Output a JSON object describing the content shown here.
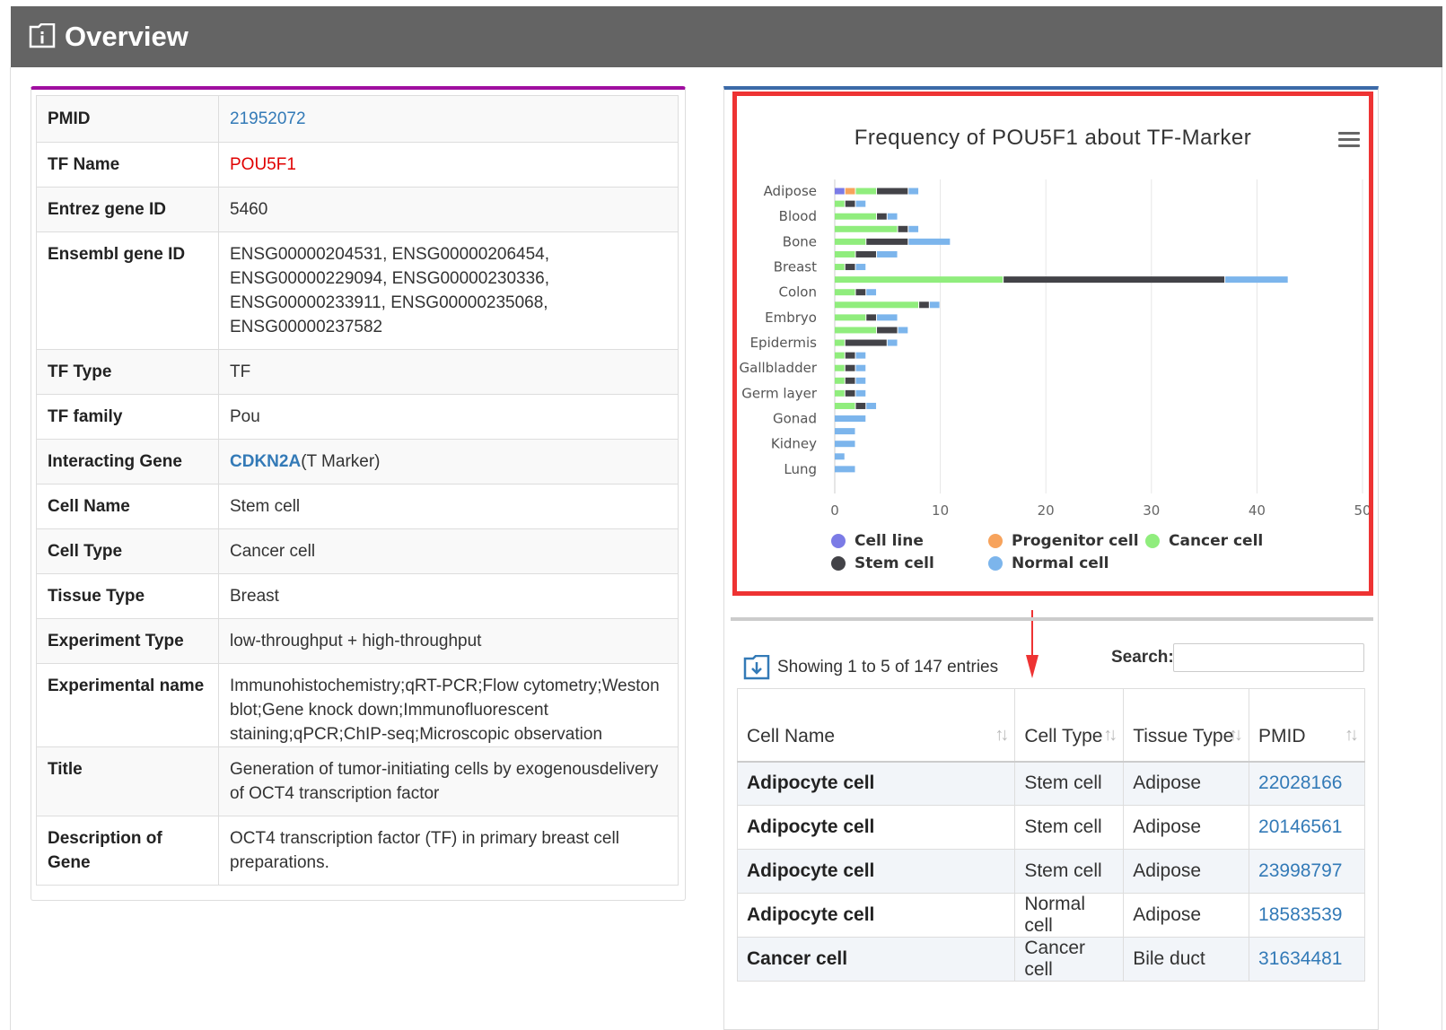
{
  "header": {
    "title": "Overview"
  },
  "details": [
    {
      "label": "PMID",
      "value": "21952072",
      "style": "link"
    },
    {
      "label": "TF Name",
      "value": "POU5F1",
      "style": "red"
    },
    {
      "label": "Entrez gene ID",
      "value": "5460",
      "style": "plain"
    },
    {
      "label": "Ensembl gene ID",
      "value": "ENSG00000204531, ENSG00000206454, ENSG00000229094, ENSG00000230336, ENSG00000233911, ENSG00000235068, ENSG00000237582",
      "style": "plain"
    },
    {
      "label": "TF Type",
      "value": "TF",
      "style": "plain"
    },
    {
      "label": "TF family",
      "value": "Pou",
      "style": "plain"
    },
    {
      "label": "Interacting Gene",
      "value": "CDKN2A",
      "suffix": "(T Marker)",
      "style": "gene"
    },
    {
      "label": "Cell Name",
      "value": "Stem cell",
      "style": "plain"
    },
    {
      "label": "Cell Type",
      "value": "Cancer cell",
      "style": "plain"
    },
    {
      "label": "Tissue Type",
      "value": "Breast",
      "style": "plain"
    },
    {
      "label": "Experiment Type",
      "value": "low-throughput + high-throughput",
      "style": "plain"
    },
    {
      "label": "Experimental name",
      "value": "Immunohistochemistry;qRT-PCR;Flow cytometry;Weston blot;Gene knock down;Immunofluorescent staining;qPCR;ChIP-seq;Microscopic observation",
      "style": "plain"
    },
    {
      "label": "Title",
      "value": "Generation of tumor-initiating cells by exogenousdelivery of OCT4 transcription factor",
      "style": "plain"
    },
    {
      "label": "Description of Gene",
      "value": "OCT4 transcription factor (TF) in primary breast cell preparations.",
      "style": "plain"
    }
  ],
  "chart_data": {
    "type": "bar",
    "orientation": "horizontal",
    "stacked": true,
    "title": "Frequency of POU5F1 about TF-Marker",
    "xlim": [
      0,
      50
    ],
    "xticks": [
      0,
      10,
      20,
      30,
      40,
      50
    ],
    "categories": [
      "Adipose",
      "",
      "Blood",
      "",
      "Bone",
      "",
      "Breast",
      "",
      "Colon",
      "",
      "Embryo",
      "",
      "Epidermis",
      "",
      "Gallbladder",
      "",
      "Germ layer",
      "",
      "Gonad",
      "",
      "Kidney",
      "",
      "Lung",
      ""
    ],
    "series": [
      {
        "name": "Cell line",
        "color": "#7b7be6",
        "values": [
          1,
          0,
          0,
          0,
          0,
          0,
          0,
          0,
          0,
          0,
          0,
          0,
          0,
          0,
          0,
          0,
          0,
          0,
          0,
          0,
          0,
          0,
          0,
          0
        ]
      },
      {
        "name": "Progenitor cell",
        "color": "#f7a35c",
        "values": [
          1,
          0,
          0,
          0,
          0,
          0,
          0,
          0,
          0,
          0,
          0,
          0,
          0,
          0,
          0,
          0,
          0,
          0,
          0,
          0,
          0,
          0,
          0,
          0
        ]
      },
      {
        "name": "Cancer cell",
        "color": "#90ed7d",
        "values": [
          2,
          1,
          4,
          6,
          3,
          2,
          1,
          16,
          2,
          8,
          3,
          4,
          1,
          1,
          1,
          1,
          1,
          2,
          0,
          0,
          0,
          0,
          0,
          0
        ]
      },
      {
        "name": "Stem cell",
        "color": "#434348",
        "values": [
          3,
          1,
          1,
          1,
          4,
          2,
          1,
          21,
          1,
          1,
          1,
          2,
          4,
          1,
          1,
          1,
          1,
          1,
          0,
          0,
          0,
          0,
          0,
          0
        ]
      },
      {
        "name": "Normal cell",
        "color": "#7cb5ec",
        "values": [
          1,
          1,
          1,
          1,
          4,
          2,
          1,
          6,
          1,
          1,
          2,
          1,
          1,
          1,
          1,
          1,
          1,
          1,
          3,
          2,
          2,
          1,
          2,
          0
        ]
      }
    ],
    "legend": [
      {
        "name": "Cell line",
        "color": "#7b7be6"
      },
      {
        "name": "Progenitor cell",
        "color": "#f7a35c"
      },
      {
        "name": "Cancer cell",
        "color": "#90ed7d"
      },
      {
        "name": "Stem cell",
        "color": "#434348"
      },
      {
        "name": "Normal cell",
        "color": "#7cb5ec"
      }
    ],
    "legend_position": "bottom"
  },
  "entries": {
    "info": "Showing 1 to 5 of 147 entries",
    "search_label": "Search:",
    "search_value": "",
    "columns": [
      "Cell Name",
      "Cell Type",
      "Tissue Type",
      "PMID"
    ],
    "rows": [
      {
        "cell_name": "Adipocyte cell",
        "cell_type": "Stem cell",
        "tissue": "Adipose",
        "pmid": "22028166"
      },
      {
        "cell_name": "Adipocyte cell",
        "cell_type": "Stem cell",
        "tissue": "Adipose",
        "pmid": "20146561"
      },
      {
        "cell_name": "Adipocyte cell",
        "cell_type": "Stem cell",
        "tissue": "Adipose",
        "pmid": "23998797"
      },
      {
        "cell_name": "Adipocyte cell",
        "cell_type": "Normal cell",
        "tissue": "Adipose",
        "pmid": "18583539"
      },
      {
        "cell_name": "Cancer cell",
        "cell_type": "Cancer cell",
        "tissue": "Bile duct",
        "pmid": "31634481"
      }
    ]
  }
}
